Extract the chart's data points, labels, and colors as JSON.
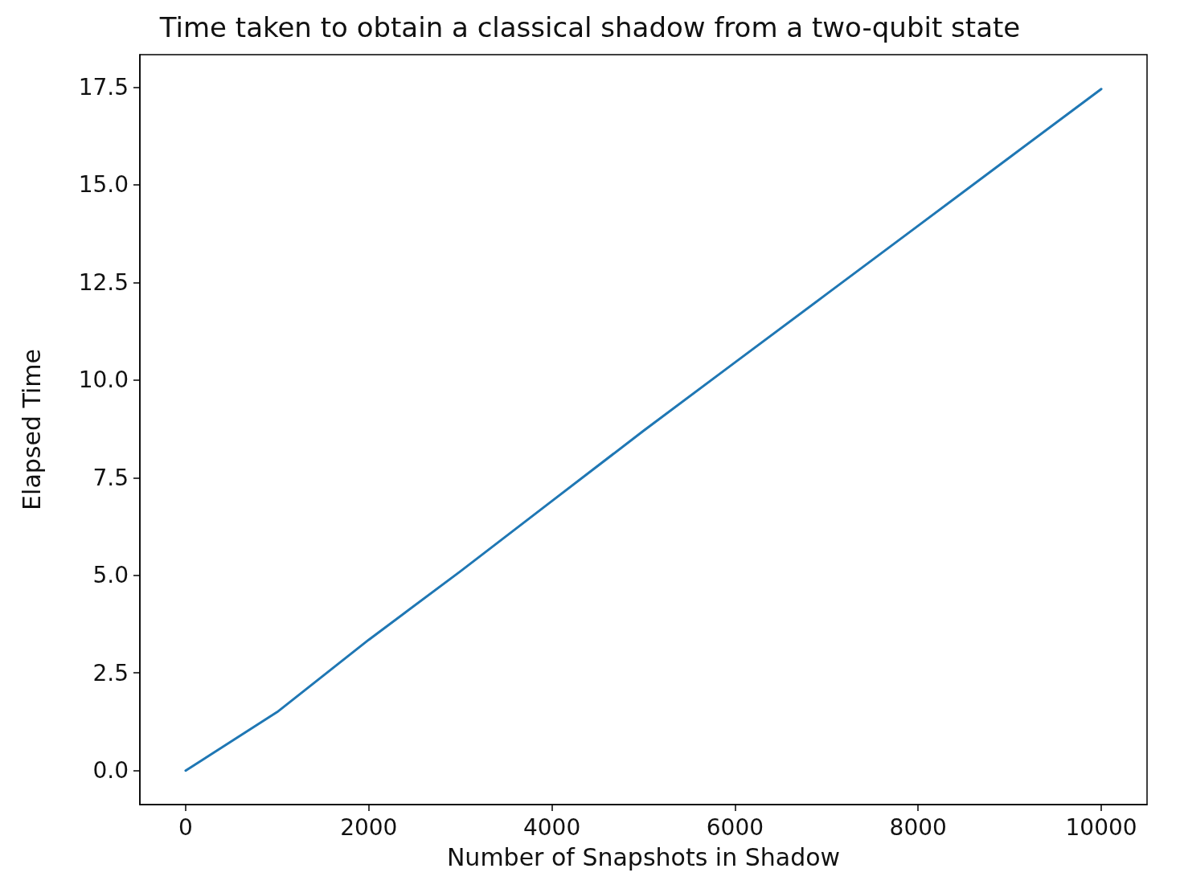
{
  "chart_data": {
    "type": "line",
    "title": "Time taken to obtain a classical shadow from a two-qubit state",
    "xlabel": "Number of Snapshots in Shadow",
    "ylabel": "Elapsed Time",
    "x": [
      0,
      1000,
      2000,
      3000,
      4000,
      5000,
      6000,
      7000,
      8000,
      9000,
      10000
    ],
    "series": [
      {
        "color": "#1f77b4",
        "values": [
          0,
          1.5,
          3.35,
          5.1,
          6.9,
          8.7,
          10.45,
          12.2,
          13.95,
          15.7,
          17.45
        ]
      }
    ],
    "xlim": [
      -500,
      10500
    ],
    "xticks": [
      0,
      2000,
      4000,
      6000,
      8000,
      10000
    ],
    "ylim": [
      -0.87,
      18.33
    ],
    "yticks": [
      {
        "value": 0,
        "label": "0.0"
      },
      {
        "value": 2.5,
        "label": "2.5"
      },
      {
        "value": 5,
        "label": "5.0"
      },
      {
        "value": 7.5,
        "label": "7.5"
      },
      {
        "value": 10,
        "label": "10.0"
      },
      {
        "value": 12.5,
        "label": "12.5"
      },
      {
        "value": 15,
        "label": "15.0"
      },
      {
        "value": 17.5,
        "label": "17.5"
      }
    ],
    "grid": false,
    "marker": "none",
    "line_style": "solid"
  }
}
